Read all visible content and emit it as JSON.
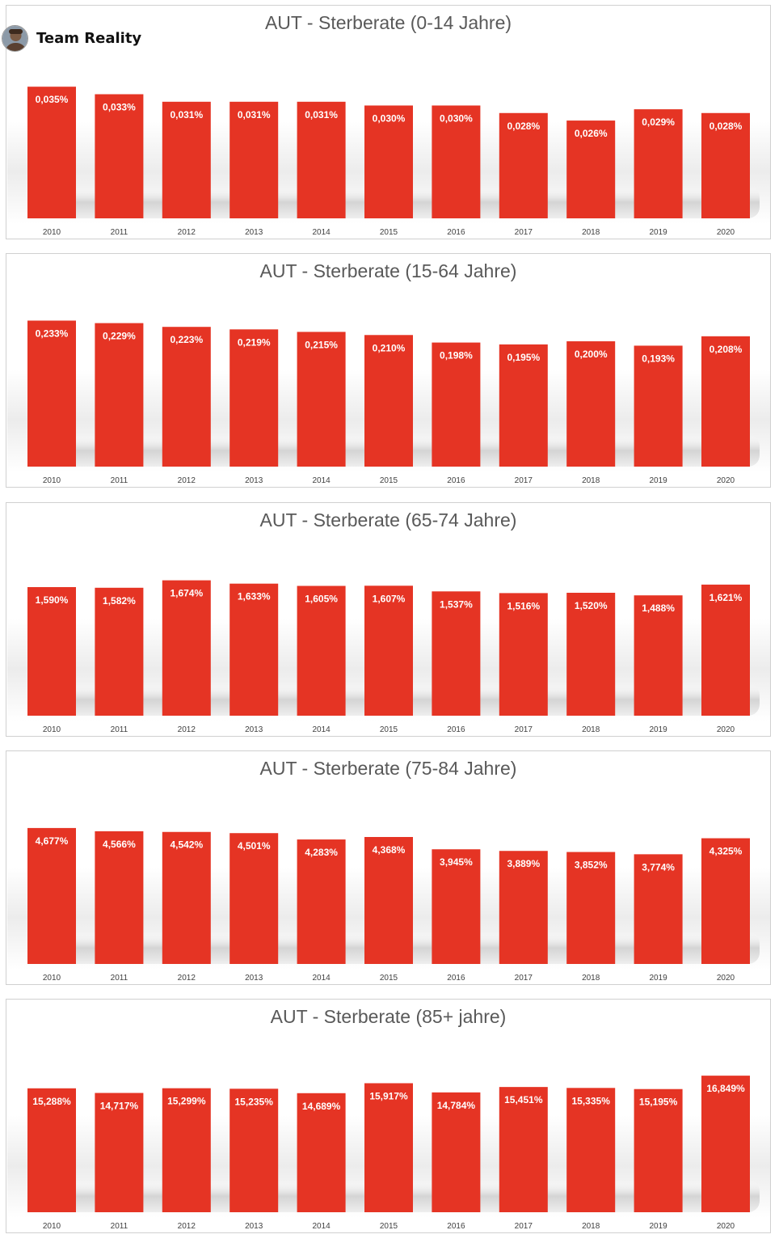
{
  "brand": {
    "name": "Team Reality",
    "avatar_icon": "person-avatar-icon"
  },
  "colors": {
    "bar": "#e53424",
    "bar_label": "#ffffff",
    "title": "#595959",
    "tick": "#404040"
  },
  "chart_data": [
    {
      "type": "bar",
      "title": "AUT - Sterberate (0-14 Jahre)",
      "categories": [
        "2010",
        "2011",
        "2012",
        "2013",
        "2014",
        "2015",
        "2016",
        "2017",
        "2018",
        "2019",
        "2020"
      ],
      "values": [
        0.035,
        0.033,
        0.031,
        0.031,
        0.031,
        0.03,
        0.03,
        0.028,
        0.026,
        0.029,
        0.028
      ],
      "labels": [
        "0,035%",
        "0,033%",
        "0,031%",
        "0,031%",
        "0,031%",
        "0,030%",
        "0,030%",
        "0,028%",
        "0,026%",
        "0,029%",
        "0,028%"
      ],
      "ylim": [
        0,
        0.0387
      ],
      "grid": false,
      "legend": "none"
    },
    {
      "type": "bar",
      "title": "AUT - Sterberate (15-64 Jahre)",
      "categories": [
        "2010",
        "2011",
        "2012",
        "2013",
        "2014",
        "2015",
        "2016",
        "2017",
        "2018",
        "2019",
        "2020"
      ],
      "values": [
        0.233,
        0.229,
        0.223,
        0.219,
        0.215,
        0.21,
        0.198,
        0.195,
        0.2,
        0.193,
        0.208
      ],
      "labels": [
        "0,233%",
        "0,229%",
        "0,223%",
        "0,219%",
        "0,215%",
        "0,210%",
        "0,198%",
        "0,195%",
        "0,200%",
        "0,193%",
        "0,208%"
      ],
      "ylim": [
        0,
        0.2323
      ],
      "grid": false,
      "legend": "none"
    },
    {
      "type": "bar",
      "title": "AUT - Sterberate (65-74 Jahre)",
      "categories": [
        "2010",
        "2011",
        "2012",
        "2013",
        "2014",
        "2015",
        "2016",
        "2017",
        "2018",
        "2019",
        "2020"
      ],
      "values": [
        1.59,
        1.582,
        1.674,
        1.633,
        1.605,
        1.607,
        1.537,
        1.516,
        1.52,
        1.488,
        1.621
      ],
      "labels": [
        "1,590%",
        "1,582%",
        "1,674%",
        "1,633%",
        "1,605%",
        "1,607%",
        "1,537%",
        "1,516%",
        "1,520%",
        "1,488%",
        "1,621%"
      ],
      "ylim": [
        0,
        1.8
      ],
      "grid": false,
      "legend": "none"
    },
    {
      "type": "bar",
      "title": "AUT - Sterberate (75-84 Jahre)",
      "categories": [
        "2010",
        "2011",
        "2012",
        "2013",
        "2014",
        "2015",
        "2016",
        "2017",
        "2018",
        "2019",
        "2020"
      ],
      "values": [
        4.677,
        4.566,
        4.542,
        4.501,
        4.283,
        4.368,
        3.945,
        3.889,
        3.852,
        3.774,
        4.325
      ],
      "labels": [
        "4,677%",
        "4,566%",
        "4,542%",
        "4,501%",
        "4,283%",
        "4,368%",
        "3,945%",
        "3,889%",
        "3,852%",
        "3,774%",
        "4,325%"
      ],
      "ylim": [
        0,
        5.008
      ],
      "grid": false,
      "legend": "none"
    },
    {
      "type": "bar",
      "title": "AUT - Sterberate (85+ jahre)",
      "categories": [
        "2010",
        "2011",
        "2012",
        "2013",
        "2014",
        "2015",
        "2016",
        "2017",
        "2018",
        "2019",
        "2020"
      ],
      "values": [
        15.288,
        14.717,
        15.299,
        15.235,
        14.689,
        15.917,
        14.784,
        15.451,
        15.335,
        15.195,
        16.849
      ],
      "labels": [
        "15,288%",
        "14,717%",
        "15,299%",
        "15,235%",
        "14,689%",
        "15,917%",
        "14,784%",
        "15,451%",
        "15,335%",
        "15,195%",
        "16,849%"
      ],
      "ylim": [
        0,
        17.96
      ],
      "grid": false,
      "legend": "none"
    }
  ]
}
